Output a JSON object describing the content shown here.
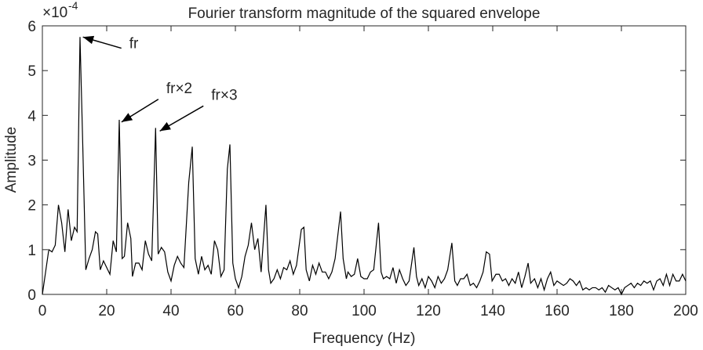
{
  "chart_data": {
    "type": "line",
    "title": "Fourier transform magnitude of the squared envelope",
    "x_label": "Frequency (Hz)",
    "y_label": "Amplitude",
    "y_multiplier": {
      "base": "×10",
      "exponent": "-4"
    },
    "color": "#000000",
    "xlim": [
      0,
      200
    ],
    "ylim": [
      0,
      6
    ],
    "xticks": [
      0,
      20,
      40,
      60,
      80,
      100,
      120,
      140,
      160,
      180,
      200
    ],
    "yticks": [
      0,
      1,
      2,
      3,
      4,
      5,
      6
    ],
    "grid": false,
    "annotations": [
      {
        "text": "fr",
        "xy": [
          12.6,
          5.75
        ],
        "xytext": [
          27,
          5.5
        ]
      },
      {
        "text": "fr×2",
        "xy": [
          24.6,
          3.85
        ],
        "xytext": [
          38.5,
          4.5
        ]
      },
      {
        "text": "fr×3",
        "xy": [
          36.5,
          3.65
        ],
        "xytext": [
          52.5,
          4.35
        ]
      }
    ],
    "x": [
      0,
      1,
      2,
      3,
      4,
      5,
      6,
      7,
      8,
      9,
      10,
      10.8,
      11.7,
      12.5,
      13.5,
      14.5,
      15.5,
      16.5,
      17.2,
      18,
      19,
      20,
      21,
      22,
      23,
      23.9,
      24.8,
      25.5,
      26.5,
      27.5,
      28,
      29,
      30,
      31,
      32,
      33,
      34,
      35.2,
      36,
      37,
      38,
      39,
      40,
      41,
      42,
      43,
      44,
      45.5,
      46.6,
      47.5,
      48.5,
      49.5,
      50.5,
      51.5,
      52.5,
      53.5,
      54.5,
      55.5,
      56.5,
      57.5,
      58.3,
      59.2,
      60,
      61,
      62,
      63,
      64,
      65,
      66,
      67,
      68,
      69.5,
      70.3,
      71,
      72,
      73,
      74,
      75,
      76,
      77,
      78,
      79,
      80.5,
      81.3,
      82,
      83,
      84,
      85,
      86,
      87,
      88,
      89,
      90,
      91,
      92.7,
      93.5,
      94.5,
      95,
      96,
      97,
      98,
      99,
      100,
      101,
      102,
      103,
      104.5,
      105.3,
      106,
      107,
      108,
      109,
      110,
      111,
      112,
      113,
      114,
      115.5,
      116.3,
      117,
      118,
      119,
      120,
      121,
      122,
      123,
      124,
      125,
      126,
      127.3,
      128.2,
      129,
      130,
      131,
      132,
      133,
      134,
      135,
      136,
      137,
      138,
      139,
      139.8,
      141,
      142,
      143,
      144,
      145,
      146,
      147,
      148,
      149,
      150,
      151,
      151.8,
      153,
      154,
      155,
      156,
      157,
      158,
      159,
      160,
      161,
      162,
      163,
      164,
      165,
      166,
      167,
      168,
      169,
      170,
      171,
      172,
      173,
      174,
      175,
      176,
      177,
      178,
      179,
      180,
      181,
      182,
      183,
      184,
      185,
      186,
      187,
      188,
      189,
      190,
      191,
      192,
      193,
      194,
      195,
      196,
      197,
      198,
      199,
      200
    ],
    "values": [
      0,
      0.5,
      1.0,
      0.95,
      1.1,
      2.0,
      1.6,
      0.95,
      1.9,
      1.2,
      1.5,
      1.4,
      5.75,
      3.5,
      0.55,
      0.8,
      1.0,
      1.4,
      1.35,
      0.55,
      0.75,
      0.6,
      0.45,
      1.2,
      0.95,
      3.9,
      0.8,
      0.85,
      1.6,
      1.25,
      0.4,
      0.7,
      0.7,
      0.55,
      1.2,
      0.9,
      0.75,
      3.72,
      0.9,
      1.05,
      0.95,
      0.5,
      0.3,
      0.65,
      0.85,
      0.7,
      0.6,
      2.5,
      3.3,
      0.8,
      0.45,
      0.85,
      0.55,
      0.65,
      0.45,
      1.2,
      1.0,
      0.4,
      0.55,
      2.8,
      3.35,
      0.7,
      0.35,
      0.15,
      0.4,
      0.85,
      1.1,
      1.6,
      1.0,
      1.25,
      0.5,
      2.0,
      0.55,
      0.25,
      0.35,
      0.55,
      0.35,
      0.6,
      0.55,
      0.75,
      0.45,
      0.65,
      1.45,
      1.5,
      0.55,
      0.3,
      0.65,
      0.45,
      0.7,
      0.5,
      0.5,
      0.35,
      0.5,
      0.8,
      1.85,
      0.8,
      0.35,
      0.5,
      0.4,
      0.45,
      0.8,
      0.4,
      0.35,
      0.35,
      0.5,
      0.55,
      1.6,
      0.5,
      0.35,
      0.4,
      0.35,
      0.6,
      0.25,
      0.55,
      0.35,
      0.2,
      0.3,
      1.05,
      0.4,
      0.2,
      0.35,
      0.15,
      0.4,
      0.3,
      0.15,
      0.4,
      0.25,
      0.35,
      0.55,
      1.15,
      0.3,
      0.2,
      0.35,
      0.35,
      0.45,
      0.2,
      0.25,
      0.15,
      0.3,
      0.5,
      0.95,
      0.9,
      0.3,
      0.45,
      0.45,
      0.3,
      0.35,
      0.2,
      0.35,
      0.25,
      0.5,
      0.15,
      0.4,
      0.7,
      0.25,
      0.35,
      0.15,
      0.35,
      0.1,
      0.35,
      0.5,
      0.2,
      0.3,
      0.25,
      0.2,
      0.25,
      0.35,
      0.3,
      0.2,
      0.3,
      0.1,
      0.15,
      0.1,
      0.15,
      0.15,
      0.1,
      0.15,
      0.05,
      0.2,
      0.15,
      0.1,
      0.15,
      0.0,
      0.15,
      0.2,
      0.25,
      0.15,
      0.25,
      0.2,
      0.3,
      0.25,
      0.3,
      0.1,
      0.3,
      0.35,
      0.2,
      0.45,
      0.2,
      0.45,
      0.3,
      0.3,
      0.45,
      0.3
    ]
  }
}
